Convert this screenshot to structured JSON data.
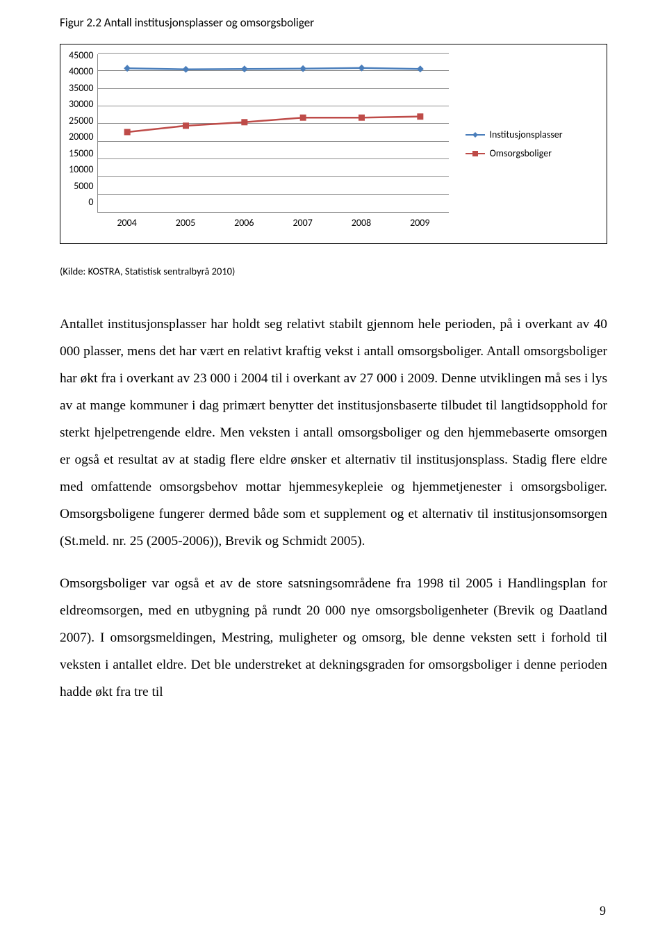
{
  "figure_title": "Figur 2.2 Antall institusjonsplasser og omsorgsboliger",
  "chart": {
    "type": "line",
    "ylim": [
      0,
      45000
    ],
    "ytick_step": 5000,
    "yticks": [
      "45000",
      "40000",
      "35000",
      "30000",
      "25000",
      "20000",
      "15000",
      "10000",
      "5000",
      "0"
    ],
    "xlabels": [
      "2004",
      "2005",
      "2006",
      "2007",
      "2008",
      "2009"
    ],
    "series1": {
      "label": "Institusjonsplasser",
      "color": "#4a7ebb",
      "marker": "diamond",
      "values": [
        41000,
        40700,
        40800,
        40900,
        41100,
        40800
      ]
    },
    "series2": {
      "label": "Omsorgsboliger",
      "color": "#be4b48",
      "marker": "square",
      "values": [
        22900,
        24700,
        25700,
        27000,
        27000,
        27300
      ]
    },
    "grid_color": "#8c8c8c",
    "background": "#ffffff"
  },
  "source": "(Kilde: KOSTRA, Statistisk sentralbyrå 2010)",
  "para1": "Antallet institusjonsplasser har holdt seg relativt stabilt gjennom hele perioden, på i overkant av 40 000 plasser, mens det har vært en relativt kraftig vekst i antall omsorgsboliger. Antall omsorgsboliger har økt fra i overkant av 23 000 i 2004 til i overkant av 27 000 i 2009. Denne utviklingen må ses i lys av at mange kommuner i dag primært benytter det institusjonsbaserte tilbudet til langtidsopphold for sterkt hjelpetrengende eldre. Men veksten i antall omsorgsboliger og den hjemmebaserte omsorgen er også et resultat av at stadig flere eldre ønsker et alternativ til institusjonsplass. Stadig flere eldre med omfattende omsorgsbehov mottar hjemmesykepleie og hjemmetjenester i omsorgsboliger. Omsorgsboligene fungerer dermed både som et supplement og et alternativ til institusjonsomsorgen (St.meld. nr. 25 (2005-2006)), Brevik og Schmidt 2005).",
  "para2": "Omsorgsboliger var også et av de store satsningsområdene fra 1998 til 2005 i Handlingsplan for eldreomsorgen, med en utbygning på rundt 20 000 nye omsorgsboligenheter (Brevik og Daatland 2007). I omsorgsmeldingen, Mestring, muligheter og omsorg, ble denne veksten sett i forhold til veksten i antallet eldre. Det ble understreket at dekningsgraden for omsorgsboliger i denne perioden hadde økt fra tre til",
  "page_number": "9"
}
